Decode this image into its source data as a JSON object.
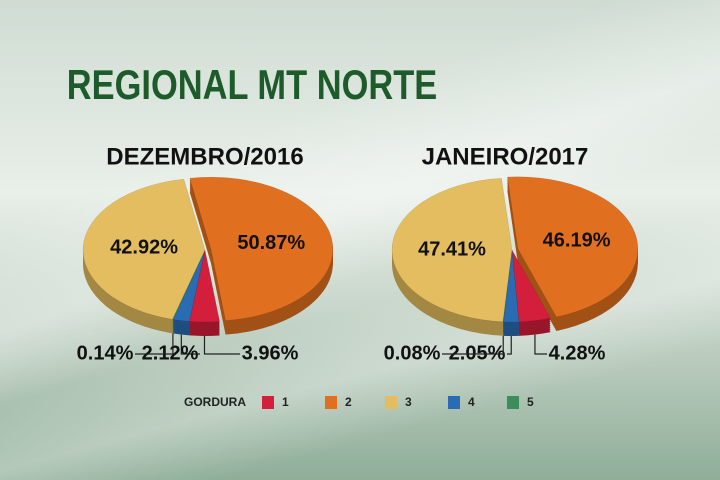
{
  "title": "REGIONAL MT NORTE",
  "legend_title": "GORDURA",
  "chart_data": [
    {
      "type": "pie",
      "title": "DEZEMBRO/2016",
      "categories": [
        "1",
        "2",
        "3",
        "4",
        "5"
      ],
      "values": [
        3.96,
        50.87,
        42.92,
        2.12,
        0.14
      ],
      "value_labels": [
        "3.96%",
        "50.87%",
        "42.92%",
        "2.12%",
        "0.14%"
      ],
      "colors": [
        "#d31f3b",
        "#e0701f",
        "#e3bd5f",
        "#2a6cb3",
        "#3c8c5c"
      ]
    },
    {
      "type": "pie",
      "title": "JANEIRO/2017",
      "categories": [
        "1",
        "2",
        "3",
        "4",
        "5"
      ],
      "values": [
        4.28,
        46.19,
        47.41,
        2.05,
        0.08
      ],
      "value_labels": [
        "4.28%",
        "46.19%",
        "47.41%",
        "2.05%",
        "0.08%"
      ],
      "colors": [
        "#d31f3b",
        "#e0701f",
        "#e3bd5f",
        "#2a6cb3",
        "#3c8c5c"
      ]
    }
  ]
}
